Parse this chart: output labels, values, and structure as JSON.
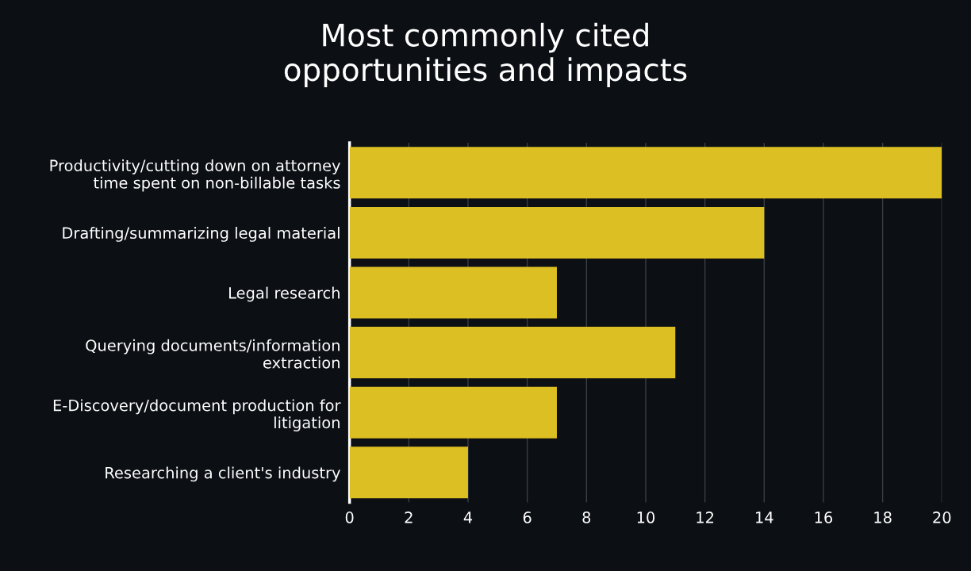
{
  "chart_data": {
    "type": "bar",
    "orientation": "horizontal",
    "title": "Most commonly cited\nopportunities and impacts",
    "categories": [
      "Productivity/cutting down on attorney\ntime spent on non-billable tasks",
      "Drafting/summarizing legal material",
      "Legal research",
      "Querying documents/information\nextraction",
      "E-Discovery/document production for\nlitigation",
      "Researching a client's industry"
    ],
    "values": [
      20,
      14,
      7,
      11,
      7,
      4
    ],
    "color": "#dcbf22",
    "xlim": [
      0,
      20
    ],
    "xticks": [
      0,
      2,
      4,
      6,
      8,
      10,
      12,
      14,
      16,
      18,
      20
    ],
    "grid": "x"
  }
}
